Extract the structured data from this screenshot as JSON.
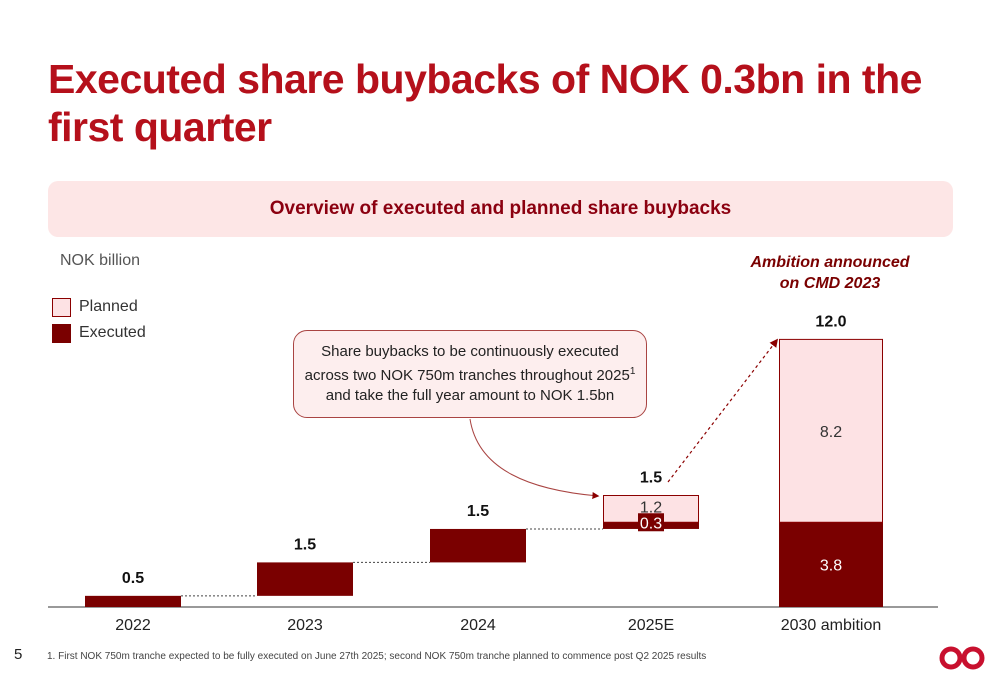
{
  "title": "Executed share buybacks of NOK 0.3bn in the first quarter",
  "banner": "Overview of executed and planned share buybacks",
  "unit_label": "NOK billion",
  "legend": {
    "planned": "Planned",
    "executed": "Executed"
  },
  "ambition_note": "Ambition announced on CMD 2023",
  "callout": {
    "text": "Share buybacks to be continuously executed across two NOK 750m tranches throughout 2025",
    "superscript": "1",
    "text_end": " and take the full year amount to NOK 1.5bn"
  },
  "footnote": "1. First NOK 750m tranche expected to be fully executed on June 27th 2025; second NOK 750m tranche planned to commence post Q2 2025 results",
  "page_number": "5",
  "colors": {
    "brand_red": "#b5101b",
    "executed": "#7a0000",
    "planned": "#fde2e4",
    "banner_bg": "#fde6e6"
  },
  "chart_data": {
    "type": "bar",
    "categories": [
      "2022",
      "2023",
      "2024",
      "2025E",
      "2030 ambition"
    ],
    "series": [
      {
        "name": "Executed",
        "values": [
          0.5,
          1.5,
          1.5,
          0.3,
          3.8
        ]
      },
      {
        "name": "Planned",
        "values": [
          0,
          0,
          0,
          1.2,
          8.2
        ]
      }
    ],
    "totals": [
      "0.5",
      "1.5",
      "1.5",
      "1.5",
      "12.0"
    ],
    "waterfall_base": [
      0,
      0.5,
      2.0,
      3.5,
      0
    ],
    "segment_labels": {
      "2025E": {
        "executed": "0.3",
        "planned": "1.2"
      },
      "2030 ambition": {
        "executed": "3.8",
        "planned": "8.2"
      }
    },
    "ylabel": "NOK billion",
    "grid": false,
    "legend_position": "top-left"
  }
}
